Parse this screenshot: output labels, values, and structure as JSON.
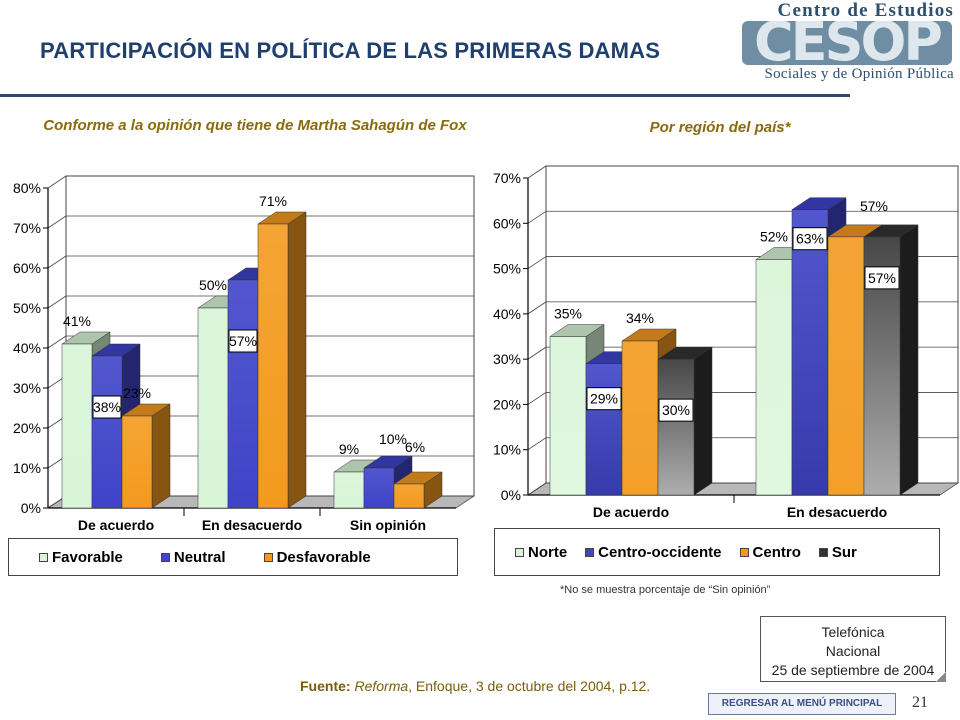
{
  "header": {
    "title": "PARTICIPACIÓN EN POLÍTICA DE LAS PRIMERAS DAMAS",
    "logo_top": "Centro de Estudios",
    "logo_mark": "CESOP",
    "logo_bottom": "Sociales y de Opinión Pública"
  },
  "colors": {
    "title": "#1f3f6e",
    "subtitle": "#8a6a0c",
    "favorable": "#d8f5d8",
    "neutral": "#3f44c8",
    "desfavorable": "#f39a1e",
    "norte": "#d8f5d8",
    "centro_occidente": "#3f44c8",
    "centro": "#f39a1e",
    "sur": "#333333"
  },
  "chart_data": [
    {
      "type": "bar",
      "title": "Conforme a la opinión que tiene de Martha Sahagún de Fox",
      "categories": [
        "De acuerdo",
        "En desacuerdo",
        "Sin opinión"
      ],
      "series": [
        {
          "name": "Favorable",
          "values": [
            41,
            50,
            9
          ],
          "labels": [
            "41%",
            "50%",
            "9%"
          ]
        },
        {
          "name": "Neutral",
          "values": [
            38,
            57,
            10
          ],
          "labels": [
            "38%",
            "57%",
            "10%"
          ]
        },
        {
          "name": "Desfavorable",
          "values": [
            23,
            71,
            6
          ],
          "labels": [
            "23%",
            "71%",
            "6%"
          ]
        }
      ],
      "yticks": [
        "0%",
        "10%",
        "20%",
        "30%",
        "40%",
        "50%",
        "60%",
        "70%",
        "80%"
      ],
      "ylim": [
        0,
        80
      ]
    },
    {
      "type": "bar",
      "title": "Por región del país*",
      "categories": [
        "De acuerdo",
        "En desacuerdo"
      ],
      "series": [
        {
          "name": "Norte",
          "values": [
            35,
            52
          ],
          "labels": [
            "35%",
            "52%"
          ]
        },
        {
          "name": "Centro-occidente",
          "values": [
            29,
            63
          ],
          "labels": [
            "29%",
            "63%"
          ]
        },
        {
          "name": "Centro",
          "values": [
            34,
            57
          ],
          "labels": [
            "34%",
            "57%"
          ]
        },
        {
          "name": "Sur",
          "values": [
            30,
            57
          ],
          "labels": [
            "30%",
            "57%"
          ]
        }
      ],
      "yticks": [
        "0%",
        "10%",
        "20%",
        "30%",
        "40%",
        "50%",
        "60%",
        "70%"
      ],
      "ylim": [
        0,
        70
      ]
    }
  ],
  "footnote": "*No se muestra porcentaje de  “Sin opinión”",
  "source": {
    "label": "Fuente:",
    "publication": "Reforma",
    "rest": ", Enfoque, 3 de octubre del 2004, p.12."
  },
  "info_box": [
    "Telefónica",
    "Nacional",
    "25 de septiembre de 2004"
  ],
  "menu_button": "REGRESAR AL MENÚ PRINCIPAL",
  "page_number": "21"
}
